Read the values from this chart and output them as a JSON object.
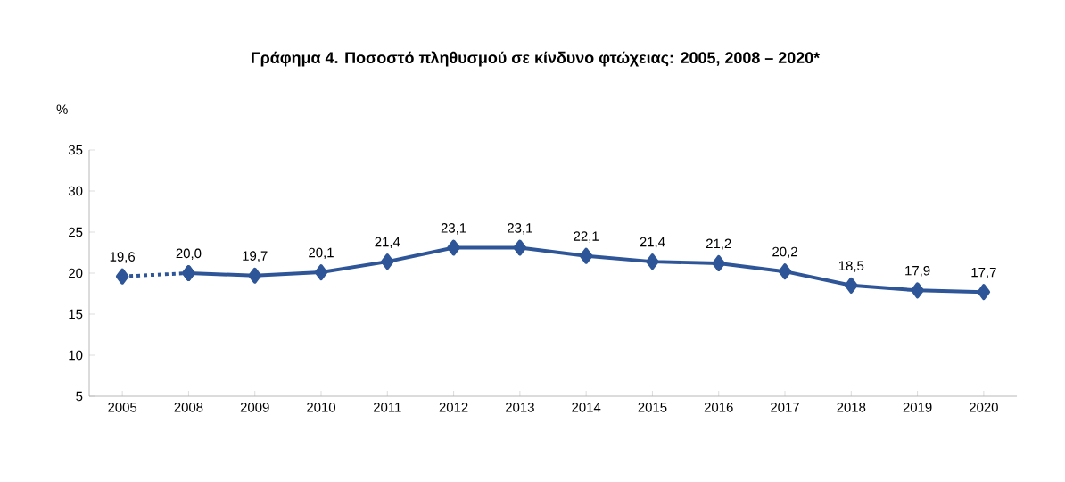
{
  "chart_data": {
    "type": "line",
    "title": "Γράφημα 4. Ποσοστό πληθυσμού σε κίνδυνο φτώχειας: 2005, 2008 – 2020*",
    "ylabel": "%",
    "categories": [
      "2005",
      "2008",
      "2009",
      "2010",
      "2011",
      "2012",
      "2013",
      "2014",
      "2015",
      "2016",
      "2017",
      "2018",
      "2019",
      "2020"
    ],
    "series": [
      {
        "color": "#2e5597",
        "line_style": "dotted",
        "values": [
          19.6,
          20.0,
          null,
          null,
          null,
          null,
          null,
          null,
          null,
          null,
          null,
          null,
          null,
          null
        ],
        "value_labels": [
          "19,6",
          null,
          null,
          null,
          null,
          null,
          null,
          null,
          null,
          null,
          null,
          null,
          null,
          null
        ]
      },
      {
        "color": "#2e5597",
        "line_style": "solid",
        "values": [
          null,
          20.0,
          19.7,
          20.1,
          21.4,
          23.1,
          23.1,
          22.1,
          21.4,
          21.2,
          20.2,
          18.5,
          17.9,
          17.7
        ],
        "value_labels": [
          null,
          "20,0",
          "19,7",
          "20,1",
          "21,4",
          "23,1",
          "23,1",
          "22,1",
          "21,4",
          "21,2",
          "20,2",
          "18,5",
          "17,9",
          "17,7"
        ]
      }
    ],
    "marker": "diamond",
    "ylim": [
      5,
      35
    ],
    "yticks": [
      5,
      10,
      15,
      20,
      25,
      30,
      35
    ],
    "grid": false
  }
}
